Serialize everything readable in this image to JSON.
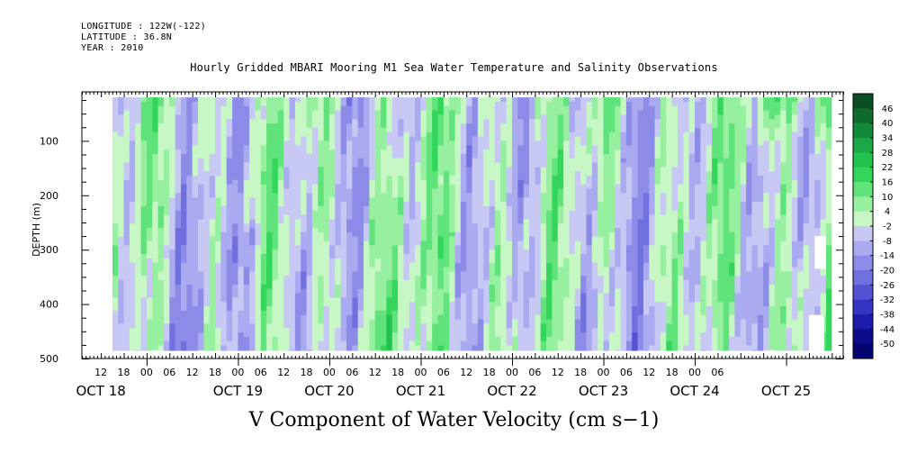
{
  "header": {
    "longitude": "LONGITUDE : 122W(-122)",
    "latitude": "LATITUDE : 36.8N",
    "year": "YEAR : 2010"
  },
  "chart_data": {
    "type": "heatmap",
    "title": "Hourly Gridded MBARI Mooring M1 Sea Water Temperature and Salinity Observations",
    "xlabel": "V Component of Water Velocity (cm s−1)",
    "ylabel": "DEPTH (m)",
    "y_ticks": [
      "100",
      "200",
      "300",
      "400",
      "500"
    ],
    "y_range": [
      10,
      500
    ],
    "data_depth_range": [
      20,
      486
    ],
    "x_range_hours": [
      -17,
      183
    ],
    "data_time_range_hours": [
      -9,
      180
    ],
    "x_hour_labels": [
      "12",
      "18",
      "00",
      "06",
      "12",
      "18",
      "00",
      "06",
      "12",
      "18",
      "00",
      "06",
      "12",
      "18",
      "00",
      "06",
      "12",
      "18",
      "00",
      "06",
      "12",
      "18",
      "00",
      "06",
      "12",
      "18",
      "00",
      "06"
    ],
    "x_day_labels": [
      "OCT 18",
      "OCT 19",
      "OCT 20",
      "OCT 21",
      "OCT 22",
      "OCT 23",
      "OCT 24",
      "OCT 25"
    ],
    "colorbar_levels": [
      "46",
      "40",
      "34",
      "28",
      "22",
      "16",
      "10",
      "4",
      "-2",
      "-8",
      "-14",
      "-20",
      "-26",
      "-32",
      "-38",
      "-44",
      "-50"
    ],
    "colorbar_colors": [
      "#0b4d22",
      "#0f6a2e",
      "#138a3a",
      "#1aa844",
      "#22c24e",
      "#33d65a",
      "#5fe37a",
      "#96f09f",
      "#c6f7c4",
      "#c8c8f5",
      "#aaaaf0",
      "#8c8ce8",
      "#7070de",
      "#5252d2",
      "#3434c2",
      "#1c1caa",
      "#0c0c8a",
      "#050570"
    ],
    "field_summary": "V velocity alternates between green (positive, up to ~20 cm/s, strongest near surface Oct 24-25) and blue/purple (negative, down to ~-26 cm/s) vertical bands"
  }
}
